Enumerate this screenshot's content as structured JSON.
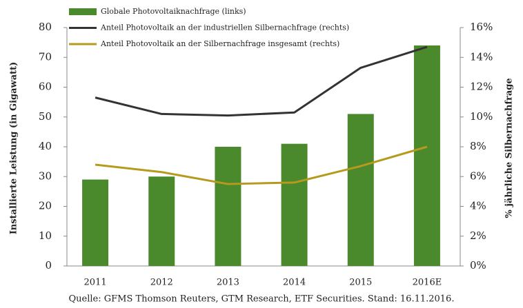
{
  "chart_data": {
    "type": "bar",
    "categories": [
      "2011",
      "2012",
      "2013",
      "2014",
      "2015",
      "2016E"
    ],
    "series": [
      {
        "name": "Globale Photovoltaiknachfrage (links)",
        "type": "bar",
        "color": "#4a8a2c",
        "values": [
          29,
          30,
          40,
          41,
          51,
          74
        ]
      },
      {
        "name": "Anteil Photovoltaik an der industriellen Silbernachfrage (rechts)",
        "type": "line",
        "axis": "y2",
        "color": "#333333",
        "values": [
          11.3,
          10.2,
          10.1,
          10.3,
          13.3,
          14.7
        ]
      },
      {
        "name": "Anteil Photovoltaik an der Silbernachfrage insgesamt (rechts)",
        "type": "line",
        "axis": "y2",
        "color": "#b59a1e",
        "values": [
          6.8,
          6.3,
          5.5,
          5.6,
          6.7,
          8.0
        ]
      }
    ],
    "ylabel": "Installierte Leistung (in Gigawatt)",
    "y2label": "% jährliche Silbernachfrage",
    "ylim": [
      0,
      80
    ],
    "yticks": [
      0,
      10,
      20,
      30,
      40,
      50,
      60,
      70,
      80
    ],
    "y2lim": [
      0,
      16
    ],
    "y2ticks": [
      {
        "value": 0,
        "label": "0%"
      },
      {
        "value": 2,
        "label": "2%"
      },
      {
        "value": 4,
        "label": "4%"
      },
      {
        "value": 6,
        "label": "6%"
      },
      {
        "value": 8,
        "label": "8%"
      },
      {
        "value": 10,
        "label": "10%"
      },
      {
        "value": 12,
        "label": "12%"
      },
      {
        "value": 14,
        "label": "14%"
      },
      {
        "value": 16,
        "label": "16%"
      }
    ],
    "source": "Quelle: GFMS Thomson Reuters, GTM Research, ETF Securities. Stand: 16.11.2016.",
    "grid": false
  }
}
